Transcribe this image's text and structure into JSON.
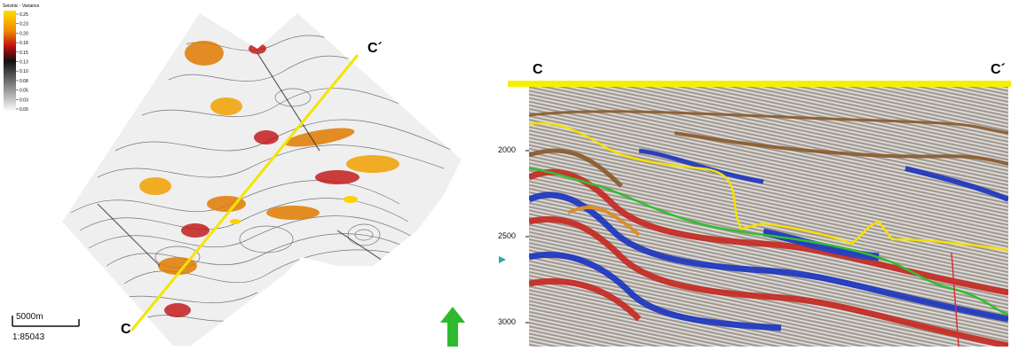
{
  "map": {
    "legend": {
      "title": "Seismic - Variance",
      "ticks": [
        "0.25",
        "0.23",
        "0.20",
        "0.18",
        "0.15",
        "0.13",
        "0.10",
        "0.08",
        "0.05",
        "0.03",
        "0.00"
      ]
    },
    "scale_bar_label": "5000m",
    "scale_ratio": "1:85043",
    "line_start_label": "C",
    "line_end_label": "C´",
    "line_color": "#f2e600",
    "north_arrow": "north-arrow-icon"
  },
  "section": {
    "label_left": "C",
    "label_right": "C´",
    "y_ticks": [
      "2000",
      "2500",
      "3000"
    ],
    "horizon_colors": {
      "yellow": "#f5e000",
      "green": "#2fbf2f",
      "fault": "#d33"
    }
  }
}
